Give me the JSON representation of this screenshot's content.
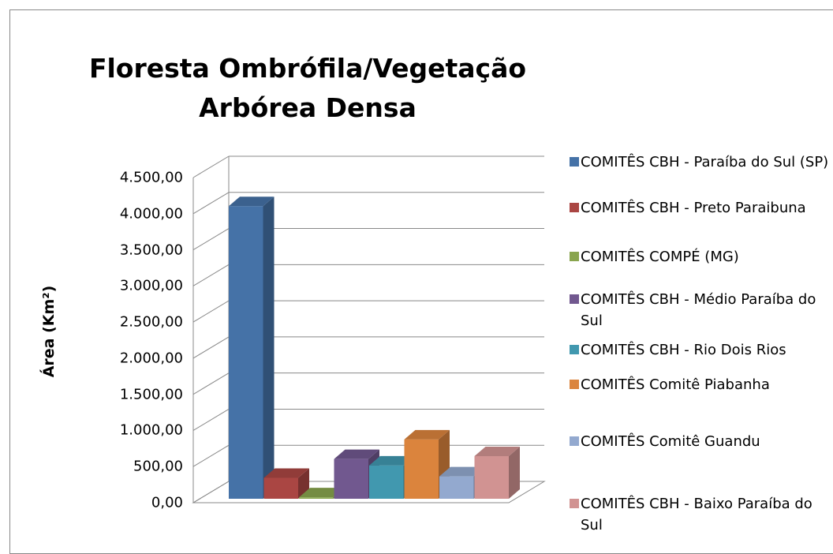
{
  "chart_data": {
    "type": "bar3d",
    "title": "Floresta Ombrófila/Vegetação Arbórea Densa",
    "y_label": "Área (Km²)",
    "categories": [
      null
    ],
    "series": [
      {
        "name": "COMITÊS CBH - Paraíba do Sul (SP)",
        "color": "#4572a7",
        "values": [
          4050
        ]
      },
      {
        "name": "COMITÊS CBH - Preto Paraibuna",
        "color": "#aa4643",
        "values": [
          290
        ]
      },
      {
        "name": "COMITÊS COMPÉ (MG)",
        "color": "#89a54e",
        "values": [
          20
        ]
      },
      {
        "name": "COMITÊS CBH - Médio Paraíba do Sul",
        "color": "#71588f",
        "values": [
          550
        ]
      },
      {
        "name": "COMITÊS CBH - Rio Dois Rios",
        "color": "#4198af",
        "values": [
          460
        ]
      },
      {
        "name": "COMITÊS Comitê Piabanha",
        "color": "#db843d",
        "values": [
          820
        ]
      },
      {
        "name": "COMITÊS Comitê Guandu",
        "color": "#93a9cf",
        "values": [
          310
        ]
      },
      {
        "name": "COMITÊS CBH - Baixo Paraíba do Sul",
        "color": "#d19392",
        "values": [
          590
        ]
      }
    ],
    "ylim": [
      0,
      4500
    ],
    "yticks": [
      {
        "value": 0,
        "label": "0,00"
      },
      {
        "value": 500,
        "label": "500,00"
      },
      {
        "value": 1000,
        "label": "1.000,00"
      },
      {
        "value": 1500,
        "label": "1.500,00"
      },
      {
        "value": 2000,
        "label": "2.000,00"
      },
      {
        "value": 2500,
        "label": "2.500,00"
      },
      {
        "value": 3000,
        "label": "3.000,00"
      },
      {
        "value": 3500,
        "label": "3.500,00"
      },
      {
        "value": 4000,
        "label": "4.000,00"
      },
      {
        "value": 4500,
        "label": "4.500,00"
      }
    ],
    "grid": true,
    "legend": "right"
  }
}
